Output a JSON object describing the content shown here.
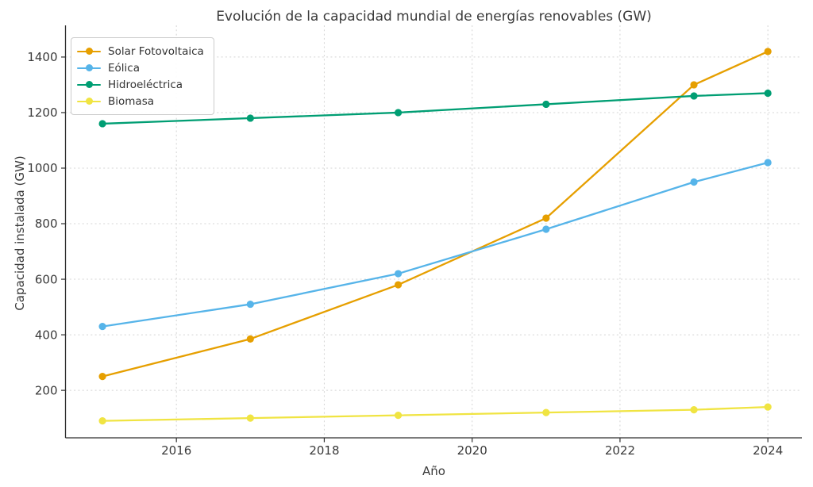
{
  "chart_data": {
    "type": "line",
    "title": "Evolución de la capacidad mundial de energías renovables (GW)",
    "xlabel": "Año",
    "ylabel": "Capacidad instalada (GW)",
    "x": [
      2015,
      2017,
      2019,
      2021,
      2023,
      2024
    ],
    "series": [
      {
        "name": "Solar Fotovoltaica",
        "color": "#E69F00",
        "values": [
          250,
          385,
          580,
          820,
          1300,
          1420
        ]
      },
      {
        "name": "Eólica",
        "color": "#56B4E9",
        "values": [
          430,
          510,
          620,
          780,
          950,
          1020
        ]
      },
      {
        "name": "Hidroeléctrica",
        "color": "#009E73",
        "values": [
          1160,
          1180,
          1200,
          1230,
          1260,
          1270
        ]
      },
      {
        "name": "Biomasa",
        "color": "#F0E442",
        "values": [
          90,
          100,
          110,
          120,
          130,
          140
        ]
      }
    ],
    "xlim": [
      2014.5,
      2024.46
    ],
    "ylim": [
      29,
      1514
    ],
    "xticks": [
      2016,
      2018,
      2020,
      2022,
      2024
    ],
    "yticks": [
      200,
      400,
      600,
      800,
      1000,
      1200,
      1400
    ],
    "grid": true,
    "grid_style": "dotted",
    "legend_position": "upper-left",
    "colors": {
      "axis": "#2f2f2f",
      "grid": "#d4d4d4",
      "text": "#3a3a3a",
      "legend_border": "#cccccc"
    }
  }
}
